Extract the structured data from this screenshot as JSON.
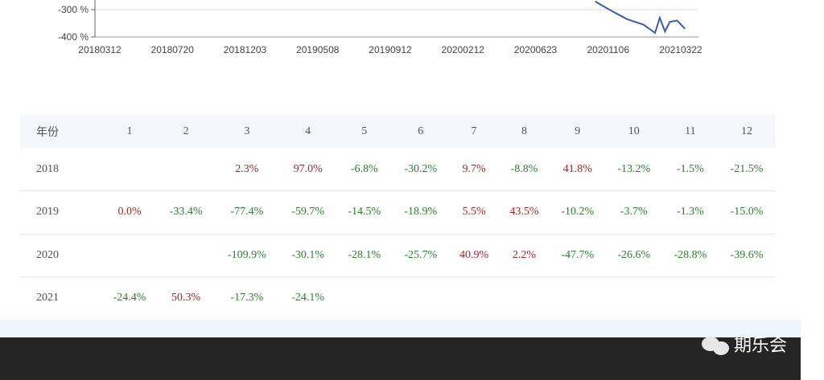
{
  "chart_data": {
    "type": "line",
    "y_ticks": [
      "-300 %",
      "-400 %"
    ],
    "x_ticks": [
      "20180312",
      "20180720",
      "20181203",
      "20190508",
      "20190912",
      "20200212",
      "20200623",
      "20201106",
      "20210322"
    ],
    "series_color": "#3a5fa8",
    "visible_points": [
      [
        "20201010",
        -270
      ],
      [
        "20201106",
        -300
      ],
      [
        "20201210",
        -335
      ],
      [
        "20210110",
        -355
      ],
      [
        "20210201",
        -385
      ],
      [
        "20210210",
        -330
      ],
      [
        "20210220",
        -380
      ],
      [
        "20210301",
        -345
      ],
      [
        "20210315",
        -340
      ],
      [
        "20210330",
        -370
      ]
    ]
  },
  "table": {
    "headers": [
      "年份",
      "1",
      "2",
      "3",
      "4",
      "5",
      "6",
      "7",
      "8",
      "9",
      "10",
      "11",
      "12"
    ],
    "rows": [
      {
        "year": "2018",
        "cells": [
          "",
          "",
          "2.3%",
          "97.0%",
          "-6.8%",
          "-30.2%",
          "9.7%",
          "-8.8%",
          "41.8%",
          "-13.2%",
          "-1.5%",
          "-21.5%"
        ]
      },
      {
        "year": "2019",
        "cells": [
          "0.0%",
          "-33.4%",
          "-77.4%",
          "-59.7%",
          "-14.5%",
          "-18.9%",
          "5.5%",
          "43.5%",
          "-10.2%",
          "-3.7%",
          "-1.3%",
          "-15.0%"
        ]
      },
      {
        "year": "2020",
        "cells": [
          "",
          "",
          "-109.9%",
          "-30.1%",
          "-28.1%",
          "-25.7%",
          "40.9%",
          "2.2%",
          "-47.7%",
          "-26.6%",
          "-28.8%",
          "-39.6%"
        ]
      },
      {
        "year": "2021",
        "cells": [
          "-24.4%",
          "50.3%",
          "-17.3%",
          "-24.1%",
          "",
          "",
          "",
          "",
          "",
          "",
          "",
          ""
        ]
      }
    ],
    "colors": {
      "positive": "#a4262c",
      "negative": "#2e7d32"
    }
  },
  "watermark": {
    "text": "期乐会",
    "icon": "wechat-icon"
  }
}
